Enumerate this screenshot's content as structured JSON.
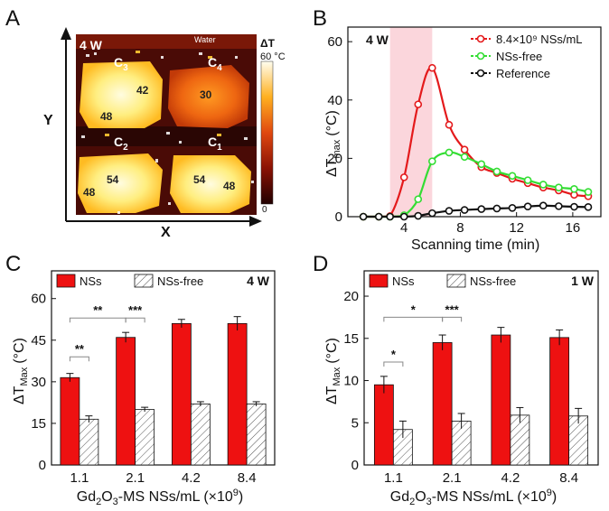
{
  "panels": {
    "a": "A",
    "b": "B",
    "c": "C",
    "d": "D"
  },
  "heatmap": {
    "power": "4 W",
    "water": "Water",
    "axis_x": "X",
    "axis_y": "Y",
    "colorbar_title": "ΔT",
    "colorbar_max": "60 °C",
    "colorbar_min": "0",
    "chambers": [
      {
        "name": "C",
        "sub": "3",
        "values": [
          "42",
          "48"
        ]
      },
      {
        "name": "C",
        "sub": "4",
        "values": [
          "30"
        ]
      },
      {
        "name": "C",
        "sub": "2",
        "values": [
          "48",
          "54"
        ]
      },
      {
        "name": "C",
        "sub": "1",
        "values": [
          "54",
          "48"
        ]
      }
    ],
    "colors": {
      "hot": "#fffbe0",
      "warm": "#ffcc33",
      "mid": "#ee6611",
      "cool": "#b02208",
      "cold": "#3a0a06"
    }
  },
  "chart_data": [
    {
      "type": "line",
      "panel": "B",
      "power": "4 W",
      "xlabel": "Scanning time (min)",
      "ylabel": "ΔT",
      "ylabel_sub": "max",
      "ylabel_unit": "(°C)",
      "xlim": [
        0,
        18
      ],
      "ylim": [
        0,
        65
      ],
      "xticks": [
        4,
        8,
        12,
        16
      ],
      "yticks": [
        0,
        20,
        40,
        60
      ],
      "shaded_region": [
        3,
        6
      ],
      "series": [
        {
          "name": "8.4×10⁹ NSs/mL",
          "color": "#e41a1c",
          "x": [
            1.1,
            2.2,
            3.0,
            4.0,
            5.0,
            6.0,
            7.2,
            8.3,
            9.5,
            10.6,
            11.7,
            12.8,
            13.9,
            15.0,
            16.1,
            17.1
          ],
          "y": [
            0,
            0,
            0.2,
            13.5,
            38.5,
            51,
            31.5,
            23,
            17,
            15,
            13,
            11.5,
            10,
            9,
            7.5,
            7
          ]
        },
        {
          "name": "NSs-free",
          "color": "#33dd33",
          "x": [
            1.1,
            2.2,
            3.0,
            4.0,
            5.0,
            6.0,
            7.2,
            8.3,
            9.5,
            10.6,
            11.7,
            12.8,
            13.9,
            15.0,
            16.1,
            17.1
          ],
          "y": [
            0,
            0,
            0,
            0.5,
            6,
            19,
            22,
            20.5,
            18,
            15.5,
            14,
            12.5,
            11,
            10,
            9.5,
            8.5
          ]
        },
        {
          "name": "Reference",
          "color": "#111111",
          "x": [
            1.1,
            2.2,
            3.0,
            4.0,
            5.0,
            6.0,
            7.2,
            8.3,
            9.5,
            10.6,
            11.7,
            12.8,
            13.9,
            15.0,
            16.1,
            17.1
          ],
          "y": [
            0,
            0,
            0,
            0,
            0.3,
            1.2,
            2,
            2.3,
            2.6,
            2.8,
            3,
            3.5,
            3.8,
            3.6,
            3.4,
            3.3
          ]
        }
      ]
    },
    {
      "type": "bar",
      "panel": "C",
      "power": "4 W",
      "categories": [
        "1.1",
        "2.1",
        "4.2",
        "8.4"
      ],
      "xlabel_pre": "Gd",
      "xlabel_sub1": "2",
      "xlabel_mid": "O",
      "xlabel_sub2": "3",
      "xlabel_post": "-MS NSs/mL (×10",
      "xlabel_sup": "9",
      "xlabel_end": ")",
      "ylabel": "ΔT",
      "ylabel_sub": "Max",
      "ylabel_unit": "(°C)",
      "ylim": [
        0,
        70
      ],
      "yticks": [
        0,
        15,
        30,
        45,
        60
      ],
      "series": [
        {
          "name": "NSs",
          "color": "#ee1111",
          "values": [
            31.5,
            46,
            51,
            51
          ],
          "errors": [
            1.5,
            1.8,
            1.5,
            2.5
          ]
        },
        {
          "name": "NSs-free",
          "color": "hatch",
          "values": [
            16.5,
            20,
            22,
            22
          ],
          "errors": [
            1.2,
            0.8,
            0.8,
            0.8
          ]
        }
      ],
      "significance": [
        {
          "from": 0,
          "to": 0,
          "label": "**",
          "level": 39
        },
        {
          "from": 0,
          "to": 1,
          "label": "**",
          "level": 53
        },
        {
          "from": 1,
          "to": 1,
          "label": "***",
          "level": 53
        }
      ]
    },
    {
      "type": "bar",
      "panel": "D",
      "power": "1 W",
      "categories": [
        "1.1",
        "2.1",
        "4.2",
        "8.4"
      ],
      "xlabel_pre": "Gd",
      "xlabel_sub1": "2",
      "xlabel_mid": "O",
      "xlabel_sub2": "3",
      "xlabel_post": "-MS NSs/mL (×10",
      "xlabel_sup": "9",
      "xlabel_end": ")",
      "ylabel": "ΔT",
      "ylabel_sub": "Max",
      "ylabel_unit": "(°C)",
      "ylim": [
        0,
        23
      ],
      "yticks": [
        0,
        5,
        10,
        15,
        20
      ],
      "series": [
        {
          "name": "NSs",
          "color": "#ee1111",
          "values": [
            9.5,
            14.5,
            15.4,
            15.1
          ],
          "errors": [
            1.0,
            0.9,
            0.9,
            0.9
          ]
        },
        {
          "name": "NSs-free",
          "color": "hatch",
          "values": [
            4.2,
            5.2,
            5.9,
            5.8
          ],
          "errors": [
            1.0,
            0.9,
            0.9,
            0.9
          ]
        }
      ],
      "significance": [
        {
          "from": 0,
          "to": 0,
          "label": "*",
          "level": 12.2
        },
        {
          "from": 0,
          "to": 1,
          "label": "*",
          "level": 17.5
        },
        {
          "from": 1,
          "to": 1,
          "label": "***",
          "level": 17.5
        }
      ]
    }
  ]
}
